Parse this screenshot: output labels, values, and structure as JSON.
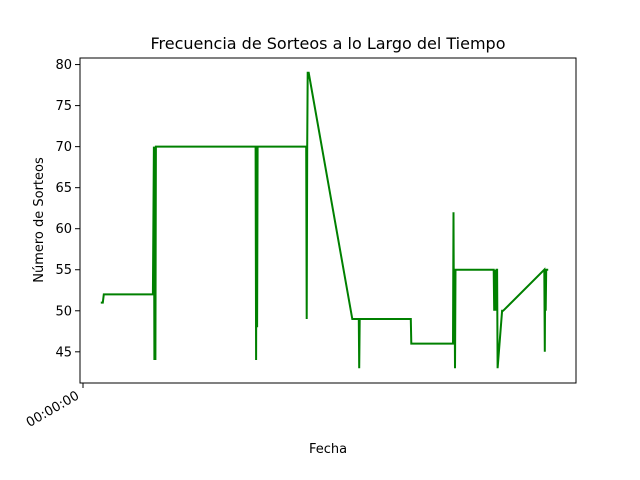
{
  "chart_data": {
    "type": "line",
    "title": "Frecuencia de Sorteos a lo Largo del Tiempo",
    "xlabel": "Fecha",
    "ylabel": "Número de Sorteos",
    "x_tick_labels": [
      "00:00:00"
    ],
    "y_ticks": [
      45,
      50,
      55,
      60,
      65,
      70,
      75,
      80
    ],
    "ylim": [
      41.2,
      80.8
    ],
    "xlim": [
      0,
      100
    ],
    "grid": false,
    "line_color": "#008000",
    "series": [
      {
        "x": [
          4.2,
          4.6,
          4.8,
          5.0,
          14.7,
          14.9,
          15.0,
          15.1,
          15.2,
          15.3,
          15.4,
          15.5,
          15.6,
          15.7,
          15.8,
          35.4,
          35.5,
          35.6,
          35.7,
          35.8,
          35.9,
          36.0,
          36.1,
          45.6,
          45.7,
          45.8,
          45.9,
          46.1,
          54.9,
          55.0,
          56.2,
          56.3,
          56.4,
          56.5,
          56.6,
          66.7,
          66.8,
          75.2,
          75.3,
          75.4,
          75.5,
          75.6,
          75.7,
          75.8,
          75.9,
          76.0,
          83.4,
          83.5,
          83.6,
          83.7,
          83.8,
          83.9,
          84.0,
          84.1,
          84.2,
          85.1,
          85.2,
          85.3,
          93.6,
          93.7,
          93.8,
          93.9,
          94.0,
          94.1,
          94.2,
          94.4
        ],
        "y": [
          51,
          51,
          52,
          52,
          52,
          70,
          44,
          70,
          44,
          70,
          70,
          70,
          70,
          70,
          70,
          70,
          44,
          70,
          48,
          70,
          70,
          70,
          70,
          70,
          49,
          70,
          79,
          79,
          49,
          49,
          49,
          43,
          49,
          49,
          49,
          49,
          46,
          46,
          62,
          46,
          55,
          43,
          55,
          55,
          55,
          55,
          55,
          50,
          55,
          50,
          55,
          50,
          55,
          55,
          43,
          50,
          50,
          50,
          55,
          45,
          55,
          50,
          55,
          55,
          55,
          55
        ]
      }
    ]
  }
}
